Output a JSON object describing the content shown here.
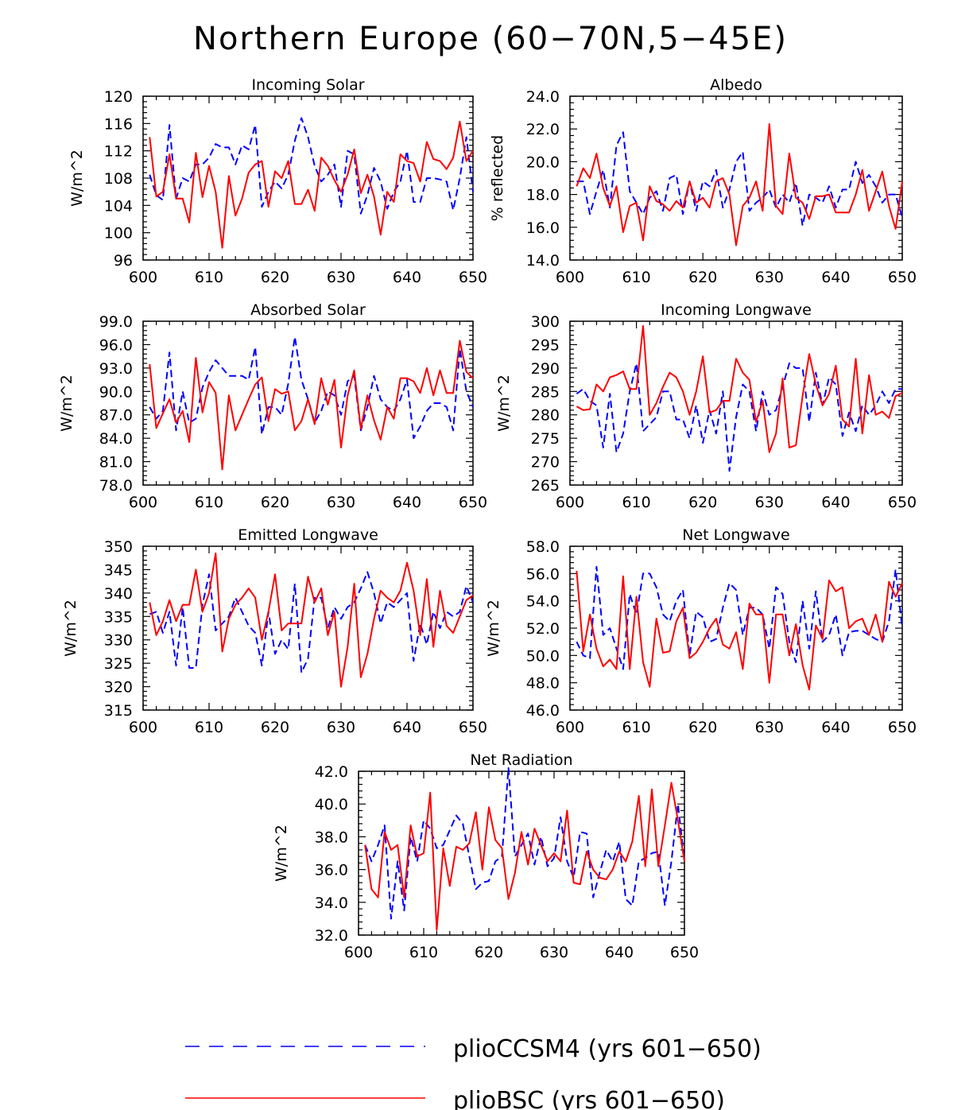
{
  "title": "Northern Europe (60−70N,5−45E)",
  "colors": {
    "cesm": "#0000ff",
    "bsc": "#ff0000",
    "axis": "#000000"
  },
  "legend": {
    "position": "bottom-center",
    "items": [
      {
        "label": "plioCCSM4 (yrs 601−650)",
        "style": "dashed",
        "color": "#0000ff"
      },
      {
        "label": "plioBSC (yrs 601−650)",
        "style": "solid",
        "color": "#ff0000"
      }
    ]
  },
  "chart_data": [
    {
      "type": "line",
      "title": "Incoming Solar",
      "ylabel": "W/m^2",
      "xlabel": "",
      "xlim": [
        600,
        650
      ],
      "ylim": [
        96,
        120
      ],
      "xticks": [
        "600",
        "610",
        "620",
        "630",
        "640",
        "650"
      ],
      "yticks": [
        "96",
        "100",
        "104",
        "108",
        "112",
        "116",
        "120"
      ],
      "x_start": 601,
      "series": [
        {
          "name": "plioCCSM4",
          "values": [
            108.5,
            105.5,
            104.8,
            115.8,
            105,
            108,
            107.5,
            110,
            110,
            111,
            113,
            112.5,
            112.5,
            110,
            112.8,
            112.2,
            115.8,
            103.8,
            106,
            107.5,
            106.5,
            108.5,
            113.5,
            116.8,
            114,
            109.8,
            107.5,
            108.5,
            110,
            103.8,
            112,
            111.5,
            102.8,
            105.5,
            109.5,
            107.5,
            103.5,
            106,
            107.5,
            112,
            104.5,
            104.5,
            108,
            108,
            107.8,
            107.5,
            103.3,
            108,
            114,
            106
          ]
        },
        {
          "name": "plioBSC",
          "values": [
            114,
            105.3,
            106,
            111.5,
            105,
            105,
            101.5,
            111.7,
            105.2,
            109.8,
            106,
            97.8,
            108.3,
            102.5,
            105,
            108.8,
            110,
            110.5,
            103.8,
            109,
            108,
            110.5,
            104.2,
            104.2,
            106.3,
            103.2,
            111,
            109.8,
            107.7,
            106,
            108.5,
            112.2,
            105.8,
            108.5,
            105.3,
            99.7,
            106,
            104.5,
            111.5,
            110.5,
            110.2,
            107.5,
            113.3,
            110.8,
            110.5,
            109.3,
            111,
            116.3,
            110.5,
            112
          ]
        }
      ]
    },
    {
      "type": "line",
      "title": "Albedo",
      "ylabel": "% reflected",
      "xlabel": "",
      "xlim": [
        600,
        650
      ],
      "ylim": [
        14,
        24
      ],
      "xticks": [
        "600",
        "610",
        "620",
        "630",
        "640",
        "650"
      ],
      "yticks": [
        "14.0",
        "16.0",
        "18.0",
        "20.0",
        "22.0",
        "24.0"
      ],
      "x_start": 601,
      "series": [
        {
          "name": "plioCCSM4",
          "values": [
            18.8,
            18.8,
            16.8,
            18.2,
            19.5,
            17.2,
            21,
            21.8,
            18.2,
            17.5,
            16.8,
            17.8,
            18.2,
            17,
            19,
            19.2,
            16.8,
            18.8,
            17,
            18.8,
            18.5,
            19.5,
            17.2,
            18.3,
            20,
            20.6,
            17,
            17.5,
            17.8,
            18.3,
            17.2,
            18,
            17.5,
            18.7,
            16.1,
            18,
            17.8,
            17.5,
            18.5,
            17.2,
            18.3,
            18.3,
            20,
            18.7,
            19.2,
            18.5,
            17.5,
            18,
            18,
            16.6
          ]
        },
        {
          "name": "plioBSC",
          "values": [
            18.5,
            19.6,
            19,
            20.5,
            18.4,
            17.3,
            18.5,
            15.7,
            17.3,
            17.5,
            15.2,
            18.5,
            17.6,
            17.4,
            17,
            17.6,
            17.2,
            18.8,
            17.5,
            17.8,
            17.2,
            18.8,
            19,
            18,
            14.9,
            17.3,
            17.8,
            18.8,
            17,
            22.3,
            17.3,
            16.8,
            20.5,
            17.8,
            17.5,
            16.5,
            17.9,
            17.9,
            18,
            16.9,
            16.9,
            16.9,
            18,
            19.5,
            17,
            18.2,
            19.4,
            17.3,
            15.9,
            18.8
          ]
        }
      ]
    },
    {
      "type": "line",
      "title": "Absorbed Solar",
      "ylabel": "W/m^2",
      "xlabel": "",
      "xlim": [
        600,
        650
      ],
      "ylim": [
        78,
        99
      ],
      "xticks": [
        "600",
        "610",
        "620",
        "630",
        "640",
        "650"
      ],
      "yticks": [
        "78.0",
        "81.0",
        "84.0",
        "87.0",
        "90.0",
        "93.0",
        "96.0",
        "99.0"
      ],
      "x_start": 601,
      "series": [
        {
          "name": "plioCCSM4",
          "values": [
            88,
            86.5,
            87.5,
            95,
            85,
            90,
            86,
            86.5,
            90.5,
            92.5,
            94,
            93,
            92,
            92,
            92,
            91.5,
            95.7,
            84.5,
            88,
            88,
            87,
            91,
            97,
            91.5,
            89,
            86,
            87.5,
            90,
            89.5,
            87,
            91.3,
            92,
            85,
            88,
            92,
            89,
            88,
            87.5,
            89,
            91.5,
            84,
            85.5,
            87.5,
            88.5,
            88.5,
            88,
            85,
            95.5,
            90,
            88
          ]
        },
        {
          "name": "plioBSC",
          "values": [
            93.5,
            85.3,
            87.2,
            89,
            86,
            87.5,
            83.5,
            94.3,
            87.3,
            91.2,
            89.8,
            80,
            89.5,
            85,
            87,
            89,
            90.9,
            91.8,
            86.2,
            90.3,
            89.7,
            90,
            85,
            86.2,
            89,
            85.8,
            91.7,
            88.3,
            91.5,
            82.8,
            89.5,
            92.7,
            85.2,
            89.5,
            86.3,
            83.8,
            88,
            86.5,
            91.7,
            91.7,
            91.3,
            89.8,
            93,
            89.5,
            92.7,
            89.8,
            89.8,
            96.5,
            92.5,
            91.7
          ]
        }
      ]
    },
    {
      "type": "line",
      "title": "Incoming Longwave",
      "ylabel": "W/m^2",
      "xlabel": "",
      "xlim": [
        600,
        650
      ],
      "ylim": [
        265,
        300
      ],
      "xticks": [
        "600",
        "610",
        "620",
        "630",
        "640",
        "650"
      ],
      "yticks": [
        "265",
        "270",
        "275",
        "280",
        "285",
        "290",
        "295",
        "300"
      ],
      "x_start": 601,
      "series": [
        {
          "name": "plioCCSM4",
          "values": [
            284.5,
            285.5,
            283,
            282,
            273,
            284.5,
            272,
            276,
            285,
            291,
            276.5,
            278,
            279.5,
            285,
            285,
            279,
            279,
            275,
            282,
            274,
            281,
            276,
            285,
            268,
            279.5,
            286.5,
            285,
            276.5,
            285,
            280,
            281,
            286,
            291,
            290,
            290,
            278.5,
            289,
            282,
            288,
            286.5,
            275.5,
            280.5,
            276.5,
            282,
            280,
            282,
            285,
            282.5,
            285.5,
            285.5
          ]
        },
        {
          "name": "plioBSC",
          "values": [
            281.8,
            281,
            281.2,
            286.5,
            285,
            288,
            288.5,
            289.3,
            285.5,
            285.5,
            299,
            280,
            282.5,
            286,
            289,
            288,
            285,
            280,
            285,
            292.5,
            280.5,
            281,
            283,
            283,
            292,
            289,
            287.5,
            278.5,
            283,
            272,
            276,
            287.8,
            273,
            273.5,
            284,
            293,
            286.5,
            282,
            284.5,
            290.5,
            279,
            277.5,
            292,
            276,
            288.5,
            280,
            280.7,
            279.3,
            284,
            284.7
          ]
        }
      ]
    },
    {
      "type": "line",
      "title": "Emitted Longwave",
      "ylabel": "W/m^2",
      "xlabel": "",
      "xlim": [
        600,
        650
      ],
      "ylim": [
        315,
        350
      ],
      "xticks": [
        "600",
        "610",
        "620",
        "630",
        "640",
        "650"
      ],
      "yticks": [
        "315",
        "320",
        "325",
        "330",
        "335",
        "340",
        "345",
        "350"
      ],
      "x_start": 601,
      "series": [
        {
          "name": "plioCCSM4",
          "values": [
            335.5,
            336,
            331.5,
            336,
            324.5,
            337,
            324,
            324,
            337.5,
            344,
            332,
            333.5,
            335,
            339,
            336,
            333,
            331.5,
            324.5,
            336,
            327,
            330,
            328,
            342,
            323,
            326,
            339,
            339,
            332.5,
            337,
            334.5,
            337,
            338,
            341,
            344.5,
            340,
            333.5,
            338,
            337,
            338.5,
            340,
            325.5,
            333.5,
            329,
            336,
            332.5,
            336,
            335,
            336,
            341.5,
            338
          ]
        },
        {
          "name": "plioBSC",
          "values": [
            338,
            331,
            334,
            338.5,
            334,
            337.5,
            337.5,
            345,
            336,
            340,
            348.5,
            327.5,
            334.5,
            337.5,
            339,
            341,
            339,
            330,
            336,
            344,
            332,
            333.5,
            333.5,
            333.5,
            343.5,
            338,
            341,
            331,
            336,
            320,
            328.5,
            342,
            322,
            327,
            334.5,
            340.5,
            339,
            338,
            340.5,
            346.5,
            340.5,
            331,
            343,
            328.5,
            340.5,
            333,
            331.5,
            335,
            338.5,
            339.5
          ]
        }
      ]
    },
    {
      "type": "line",
      "title": "Net Longwave",
      "ylabel": "W/m^2",
      "xlabel": "",
      "xlim": [
        600,
        650
      ],
      "ylim": [
        46,
        58
      ],
      "xticks": [
        "600",
        "610",
        "620",
        "630",
        "640",
        "650"
      ],
      "yticks": [
        "46.0",
        "48.0",
        "50.0",
        "52.0",
        "54.0",
        "56.0",
        "58.0"
      ],
      "x_start": 601,
      "series": [
        {
          "name": "plioCCSM4",
          "values": [
            51,
            50,
            49.8,
            56.5,
            51.5,
            52,
            50.5,
            49,
            54.5,
            53,
            56,
            56,
            55,
            53,
            52.5,
            54,
            54.8,
            50,
            53.2,
            52.8,
            51,
            51.2,
            53.5,
            55.3,
            54.8,
            51.5,
            53.5,
            53.5,
            53,
            50.5,
            55,
            54.5,
            51,
            49.5,
            54,
            50.5,
            54.7,
            51,
            51.5,
            53,
            50,
            51.7,
            51.8,
            51.8,
            51.5,
            51.2,
            51,
            52.5,
            56.3,
            52
          ]
        },
        {
          "name": "plioBSC",
          "values": [
            56.2,
            50.3,
            53,
            50.5,
            49.2,
            49.7,
            49,
            55.8,
            49,
            54.3,
            49.5,
            47.7,
            52.7,
            50.2,
            50.3,
            52.5,
            53.5,
            49.8,
            50.2,
            51,
            52,
            52.7,
            50.8,
            50.5,
            51.7,
            49,
            53.8,
            53,
            53,
            48,
            53,
            53,
            50,
            52.3,
            49.3,
            47.5,
            52.2,
            51.2,
            55.5,
            54.7,
            55,
            52,
            52.5,
            52.7,
            51.5,
            53,
            51,
            55.4,
            54.3,
            55.3
          ]
        }
      ]
    },
    {
      "type": "line",
      "title": "Net Radiation",
      "ylabel": "W/m^2",
      "xlabel": "",
      "xlim": [
        600,
        650
      ],
      "ylim": [
        32,
        42
      ],
      "xticks": [
        "600",
        "610",
        "620",
        "630",
        "640",
        "650"
      ],
      "yticks": [
        "32.0",
        "34.0",
        "36.0",
        "38.0",
        "40.0",
        "42.0"
      ],
      "x_start": 601,
      "series": [
        {
          "name": "plioCCSM4",
          "values": [
            37.5,
            36.5,
            37.5,
            38.7,
            33,
            36.5,
            33.5,
            38,
            36.5,
            39,
            38.5,
            37.3,
            37.5,
            38.4,
            39.3,
            38.8,
            36.8,
            34.8,
            35.2,
            35.3,
            36.5,
            36.8,
            42.2,
            36.8,
            37.5,
            38.2,
            36.3,
            38,
            36.2,
            36.7,
            39.2,
            36.5,
            35.5,
            38.3,
            38.2,
            34.3,
            35.8,
            37.2,
            36.5,
            37.7,
            34.2,
            33.8,
            36.5,
            36.7,
            37,
            37.1,
            33.8,
            36.5,
            40,
            36.5
          ]
        },
        {
          "name": "plioBSC",
          "values": [
            37.5,
            34.8,
            34.3,
            38.3,
            37.2,
            37.5,
            34.3,
            38.7,
            36.8,
            37,
            40.7,
            32.3,
            37.3,
            35,
            37.4,
            37.2,
            37.6,
            39.5,
            36,
            39.8,
            37.8,
            37.3,
            34.2,
            35.8,
            38.3,
            36.3,
            38.5,
            37.5,
            36.5,
            37,
            36.5,
            39.6,
            35.2,
            35.1,
            37.1,
            36,
            35.5,
            35.4,
            36,
            37.1,
            36.5,
            37.7,
            40.5,
            36.2,
            40.9,
            36.2,
            38.7,
            41.3,
            39,
            36.5
          ]
        }
      ]
    }
  ]
}
